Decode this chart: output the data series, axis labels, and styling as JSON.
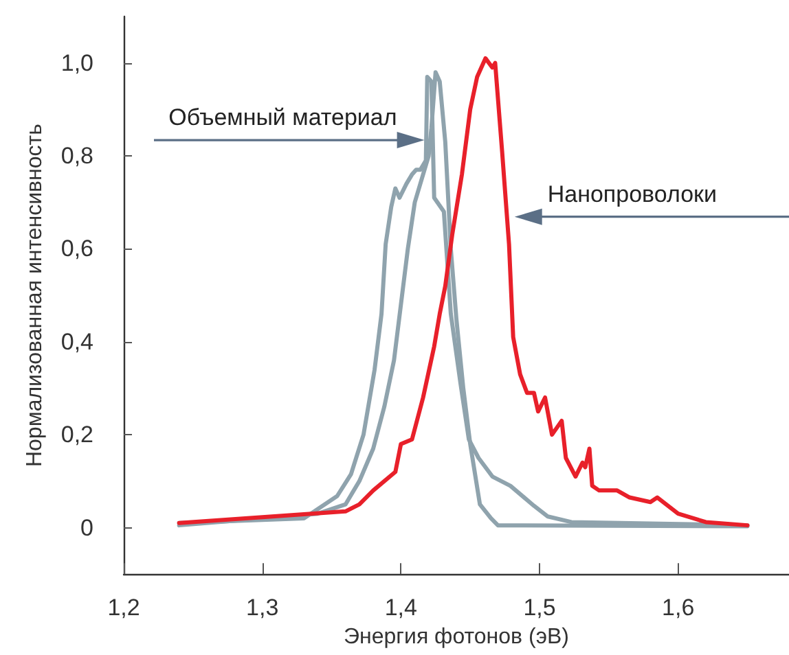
{
  "chart_data": {
    "type": "line",
    "xlabel": "Энергия фотонов (эВ)",
    "ylabel": "Нормализованная интенсивность",
    "xlim": [
      1.2,
      1.68
    ],
    "ylim": [
      -0.1,
      1.1
    ],
    "xticks": [
      {
        "value": 1.2,
        "label": "1,2"
      },
      {
        "value": 1.3,
        "label": "1,3"
      },
      {
        "value": 1.4,
        "label": "1,4"
      },
      {
        "value": 1.5,
        "label": "1,5"
      },
      {
        "value": 1.6,
        "label": "1,6"
      }
    ],
    "yticks": [
      0,
      {
        "value": 0.2,
        "label": "0,2"
      },
      {
        "value": 0.4,
        "label": "0,4"
      },
      {
        "value": 0.6,
        "label": "0,6"
      },
      {
        "value": 0.8,
        "label": "0,8"
      },
      {
        "value": 1.0,
        "label": "1,0"
      }
    ],
    "grid": false,
    "marker": "none",
    "line_style": "solid",
    "series": [
      {
        "color": "#8fa3ad",
        "x": [
          1.24,
          1.33,
          1.354,
          1.364,
          1.373,
          1.381,
          1.386,
          1.389,
          1.393,
          1.396,
          1.399,
          1.404,
          1.408,
          1.411,
          1.414,
          1.418,
          1.419,
          1.422,
          1.424,
          1.431,
          1.436,
          1.443,
          1.449,
          1.456,
          1.466,
          1.479,
          1.496,
          1.506,
          1.523,
          1.65
        ],
        "values": [
          0.01,
          0.02,
          0.068,
          0.115,
          0.2,
          0.34,
          0.46,
          0.61,
          0.69,
          0.73,
          0.71,
          0.74,
          0.76,
          0.77,
          0.77,
          0.79,
          0.97,
          0.96,
          0.71,
          0.68,
          0.46,
          0.31,
          0.19,
          0.15,
          0.11,
          0.09,
          0.047,
          0.024,
          0.012,
          0.005
        ]
      },
      {
        "color": "#8fa3ad",
        "x": [
          1.24,
          1.34,
          1.36,
          1.37,
          1.38,
          1.388,
          1.395,
          1.4,
          1.405,
          1.41,
          1.416,
          1.42,
          1.422,
          1.425,
          1.428,
          1.432,
          1.436,
          1.44,
          1.445,
          1.45,
          1.457,
          1.465,
          1.47,
          1.65
        ],
        "values": [
          0.005,
          0.03,
          0.05,
          0.1,
          0.17,
          0.26,
          0.36,
          0.48,
          0.6,
          0.7,
          0.76,
          0.8,
          0.86,
          0.98,
          0.96,
          0.83,
          0.6,
          0.45,
          0.3,
          0.18,
          0.05,
          0.02,
          0.005,
          0.003
        ]
      },
      {
        "color": "#e8202a",
        "x": [
          1.24,
          1.36,
          1.37,
          1.38,
          1.396,
          1.4,
          1.408,
          1.416,
          1.424,
          1.428,
          1.432,
          1.437,
          1.444,
          1.45,
          1.455,
          1.461,
          1.466,
          1.468,
          1.473,
          1.478,
          1.481,
          1.486,
          1.491,
          1.496,
          1.499,
          1.504,
          1.509,
          1.516,
          1.519,
          1.526,
          1.531,
          1.533,
          1.536,
          1.538,
          1.543,
          1.556,
          1.565,
          1.58,
          1.585,
          1.6,
          1.62,
          1.65
        ],
        "values": [
          0.01,
          0.035,
          0.05,
          0.08,
          0.12,
          0.18,
          0.19,
          0.28,
          0.39,
          0.46,
          0.52,
          0.63,
          0.76,
          0.9,
          0.97,
          1.01,
          0.99,
          1.0,
          0.81,
          0.61,
          0.41,
          0.33,
          0.29,
          0.29,
          0.25,
          0.28,
          0.2,
          0.23,
          0.15,
          0.11,
          0.14,
          0.13,
          0.17,
          0.09,
          0.08,
          0.08,
          0.065,
          0.055,
          0.065,
          0.03,
          0.012,
          0.005
        ]
      }
    ],
    "annotations": [
      {
        "text": "Объемный материал",
        "x": 1.417,
        "y": 0.834
      },
      {
        "text": "Нанопроволоки",
        "x": 1.482,
        "y": 0.669
      }
    ]
  }
}
